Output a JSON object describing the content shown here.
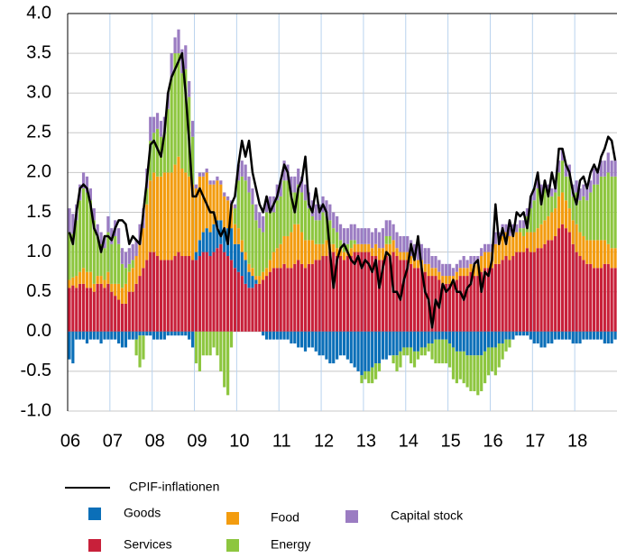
{
  "chart_data": {
    "type": "bar",
    "categories": [
      "06",
      null,
      null,
      null,
      null,
      null,
      null,
      null,
      null,
      null,
      null,
      null,
      "07",
      null,
      null,
      null,
      null,
      null,
      null,
      null,
      null,
      null,
      null,
      null,
      "08",
      null,
      null,
      null,
      null,
      null,
      null,
      null,
      null,
      null,
      null,
      null,
      "09",
      null,
      null,
      null,
      null,
      null,
      null,
      null,
      null,
      null,
      null,
      null,
      "10",
      null,
      null,
      null,
      null,
      null,
      null,
      null,
      null,
      null,
      null,
      null,
      "11",
      null,
      null,
      null,
      null,
      null,
      null,
      null,
      null,
      null,
      null,
      null,
      "12",
      null,
      null,
      null,
      null,
      null,
      null,
      null,
      null,
      null,
      null,
      null,
      "13",
      null,
      null,
      null,
      null,
      null,
      null,
      null,
      null,
      null,
      null,
      null,
      "14",
      null,
      null,
      null,
      null,
      null,
      null,
      null,
      null,
      null,
      null,
      null,
      "15",
      null,
      null,
      null,
      null,
      null,
      null,
      null,
      null,
      null,
      null,
      null,
      "16",
      null,
      null,
      null,
      null,
      null,
      null,
      null,
      null,
      null,
      null,
      null,
      "17",
      null,
      null,
      null,
      null,
      null,
      null,
      null,
      null,
      null,
      null,
      null,
      "18",
      null,
      null,
      null,
      null,
      null,
      null,
      null,
      null,
      null,
      null,
      null
    ],
    "series": [
      {
        "name": "CPIF-inflationen",
        "type": "line",
        "color": "#000000",
        "values": [
          1.25,
          1.1,
          1.5,
          1.8,
          1.85,
          1.8,
          1.6,
          1.3,
          1.2,
          1.0,
          1.2,
          1.2,
          1.15,
          1.3,
          1.4,
          1.4,
          1.35,
          1.1,
          1.2,
          1.15,
          1.1,
          1.5,
          1.9,
          2.35,
          2.4,
          2.3,
          2.2,
          2.5,
          3.0,
          3.2,
          3.3,
          3.4,
          3.5,
          3.0,
          2.4,
          1.7,
          1.7,
          1.8,
          1.7,
          1.6,
          1.5,
          1.5,
          1.3,
          1.2,
          1.3,
          1.1,
          1.6,
          1.7,
          2.1,
          2.4,
          2.2,
          2.4,
          2.0,
          1.8,
          1.6,
          1.5,
          1.7,
          1.5,
          1.6,
          1.7,
          1.9,
          2.1,
          2.0,
          1.7,
          1.5,
          1.8,
          1.9,
          2.2,
          1.6,
          1.5,
          1.8,
          1.5,
          1.6,
          1.5,
          1.0,
          0.55,
          0.9,
          1.05,
          1.1,
          1.0,
          0.9,
          0.85,
          0.95,
          0.8,
          0.9,
          0.85,
          0.75,
          0.9,
          0.55,
          0.8,
          1.0,
          0.95,
          0.5,
          0.5,
          0.4,
          0.65,
          0.8,
          1.1,
          0.9,
          1.2,
          0.8,
          0.5,
          0.4,
          0.05,
          0.4,
          0.3,
          0.6,
          0.5,
          0.55,
          0.65,
          0.5,
          0.5,
          0.4,
          0.55,
          0.6,
          0.85,
          0.9,
          0.5,
          0.75,
          0.7,
          0.9,
          1.6,
          1.1,
          1.3,
          1.1,
          1.4,
          1.2,
          1.5,
          1.45,
          1.5,
          1.3,
          1.7,
          1.8,
          2.0,
          1.6,
          1.9,
          1.7,
          2.0,
          1.8,
          2.3,
          2.3,
          2.1,
          2.0,
          1.75,
          1.6,
          1.9,
          1.95,
          1.8,
          2.0,
          2.1,
          2.0,
          2.2,
          2.3,
          2.45,
          2.4,
          2.15
        ]
      },
      {
        "name": "Goods",
        "color": "#0b6fb8",
        "values": [
          -0.35,
          -0.4,
          -0.1,
          -0.1,
          -0.1,
          -0.15,
          -0.1,
          -0.1,
          -0.1,
          -0.15,
          -0.1,
          -0.1,
          -0.1,
          -0.1,
          -0.15,
          -0.2,
          -0.2,
          -0.1,
          -0.1,
          -0.1,
          -0.05,
          -0.05,
          -0.05,
          -0.05,
          -0.1,
          -0.1,
          -0.1,
          -0.1,
          -0.05,
          -0.05,
          -0.05,
          -0.05,
          -0.05,
          -0.05,
          -0.1,
          -0.2,
          0.1,
          0.2,
          0.25,
          0.3,
          0.3,
          0.35,
          0.35,
          0.3,
          0.3,
          0.35,
          0.4,
          0.3,
          0.35,
          0.3,
          0.3,
          0.2,
          0.15,
          0.05,
          0,
          -0.05,
          -0.1,
          -0.1,
          -0.1,
          -0.1,
          -0.1,
          -0.1,
          -0.1,
          -0.15,
          -0.15,
          -0.2,
          -0.2,
          -0.25,
          -0.2,
          -0.2,
          -0.25,
          -0.3,
          -0.3,
          -0.35,
          -0.4,
          -0.4,
          -0.35,
          -0.3,
          -0.3,
          -0.35,
          -0.4,
          -0.45,
          -0.5,
          -0.55,
          -0.5,
          -0.5,
          -0.45,
          -0.4,
          -0.4,
          -0.35,
          -0.35,
          -0.3,
          -0.3,
          -0.3,
          -0.25,
          -0.2,
          -0.2,
          -0.2,
          -0.25,
          -0.25,
          -0.2,
          -0.2,
          -0.15,
          -0.15,
          -0.1,
          -0.1,
          -0.1,
          -0.1,
          -0.15,
          -0.2,
          -0.25,
          -0.25,
          -0.25,
          -0.3,
          -0.3,
          -0.3,
          -0.3,
          -0.3,
          -0.25,
          -0.2,
          -0.2,
          -0.2,
          -0.15,
          -0.15,
          -0.1,
          -0.1,
          -0.1,
          -0.05,
          -0.05,
          -0.05,
          -0.05,
          -0.1,
          -0.15,
          -0.15,
          -0.2,
          -0.2,
          -0.15,
          -0.15,
          -0.1,
          -0.1,
          -0.1,
          -0.1,
          -0.1,
          -0.15,
          -0.15,
          -0.15,
          -0.1,
          -0.1,
          -0.1,
          -0.1,
          -0.1,
          -0.1,
          -0.15,
          -0.15,
          -0.15,
          -0.1
        ]
      },
      {
        "name": "Food",
        "color": "#f39c0f",
        "values": [
          0.1,
          0.1,
          0.15,
          0.15,
          0.2,
          0.2,
          0.2,
          0.1,
          0.1,
          0.1,
          0.1,
          0.15,
          0.1,
          0.15,
          0.2,
          0.2,
          0.25,
          0.25,
          0.3,
          0.35,
          0.4,
          0.5,
          0.7,
          0.9,
          1.0,
          1.0,
          1.05,
          1.1,
          1.1,
          1.1,
          1.15,
          1.2,
          1.1,
          1.05,
          1.0,
          0.95,
          0.8,
          0.8,
          0.7,
          0.7,
          0.6,
          0.5,
          0.5,
          0.45,
          0.4,
          0.35,
          0.3,
          0.25,
          0.2,
          0.15,
          0.1,
          0.1,
          0.1,
          0.05,
          0.1,
          0.1,
          0.1,
          0.15,
          0.2,
          0.25,
          0.3,
          0.35,
          0.4,
          0.45,
          0.5,
          0.45,
          0.4,
          0.35,
          0.3,
          0.3,
          0.2,
          0.2,
          0.15,
          0.2,
          0.1,
          0.1,
          0.1,
          0.1,
          0.1,
          0.05,
          0.1,
          0.1,
          0.1,
          0.1,
          0.1,
          0.1,
          0.1,
          0.15,
          0.15,
          0.15,
          0.15,
          0.15,
          0.15,
          0.1,
          0.1,
          0.1,
          0.1,
          0.1,
          0.1,
          0.1,
          0.1,
          0.1,
          0.15,
          0.1,
          0.1,
          0.1,
          0.1,
          0.1,
          0.1,
          0.1,
          0.1,
          0.1,
          0.1,
          0.1,
          0.1,
          0.15,
          0.15,
          0.2,
          0.2,
          0.2,
          0.2,
          0.25,
          0.25,
          0.3,
          0.3,
          0.3,
          0.3,
          0.25,
          0.25,
          0.2,
          0.2,
          0.25,
          0.25,
          0.25,
          0.3,
          0.3,
          0.3,
          0.35,
          0.35,
          0.4,
          0.4,
          0.35,
          0.3,
          0.3,
          0.35,
          0.3,
          0.3,
          0.3,
          0.3,
          0.35,
          0.35,
          0.35,
          0.3,
          0.25,
          0.25,
          0.25
        ]
      },
      {
        "name": "Capital stock",
        "color": "#9b7cc2",
        "values": [
          0.3,
          0.25,
          0.2,
          0.2,
          0.2,
          0.2,
          0.15,
          0.15,
          0.15,
          0.15,
          0.15,
          0.2,
          0.2,
          0.2,
          0.2,
          0.2,
          0.2,
          0.2,
          0.2,
          0.2,
          0.25,
          0.25,
          0.25,
          0.3,
          0.2,
          0.2,
          0.2,
          0.2,
          0.2,
          0.3,
          0.2,
          0.3,
          0.3,
          0.3,
          0.2,
          0.2,
          0.05,
          0.05,
          0.05,
          0.05,
          0.05,
          0.05,
          0.05,
          0.05,
          0.05,
          0.05,
          0.05,
          0.05,
          0.2,
          0.2,
          0.2,
          0.2,
          0.2,
          0.2,
          0.2,
          0.2,
          0.2,
          0.2,
          0.2,
          0.2,
          0.2,
          0.25,
          0.2,
          0.2,
          0.2,
          0.2,
          0.2,
          0.2,
          0.2,
          0.2,
          0.2,
          0.2,
          0.2,
          0.2,
          0.2,
          0.2,
          0.2,
          0.2,
          0.2,
          0.2,
          0.2,
          0.2,
          0.2,
          0.2,
          0.2,
          0.2,
          0.2,
          0.2,
          0.2,
          0.25,
          0.2,
          0.2,
          0.2,
          0.2,
          0.2,
          0.2,
          0.2,
          0.2,
          0.2,
          0.2,
          0.2,
          0.2,
          0.2,
          0.15,
          0.15,
          0.15,
          0.15,
          0.15,
          0.15,
          0.1,
          0.1,
          0.1,
          0.15,
          0.1,
          0.1,
          0.1,
          0.1,
          0.1,
          0.1,
          0.1,
          0.1,
          0.15,
          0.15,
          0.15,
          0.1,
          0.1,
          0.1,
          0.1,
          0.1,
          0.1,
          0.1,
          0.15,
          0.15,
          0.15,
          0.15,
          0.1,
          0.1,
          0.1,
          0.1,
          0.15,
          0.15,
          0.15,
          0.15,
          0.15,
          0.15,
          0.15,
          0.15,
          0.15,
          0.15,
          0.2,
          0.2,
          0.2,
          0.2,
          0.25,
          0.2,
          0.2
        ]
      },
      {
        "name": "Services",
        "color": "#c8203a",
        "values": [
          0.55,
          0.58,
          0.55,
          0.6,
          0.6,
          0.55,
          0.55,
          0.5,
          0.6,
          0.6,
          0.55,
          0.6,
          0.5,
          0.45,
          0.4,
          0.35,
          0.35,
          0.5,
          0.5,
          0.6,
          0.7,
          0.8,
          0.9,
          1.0,
          1.0,
          0.95,
          0.9,
          0.9,
          0.9,
          0.9,
          0.95,
          1.0,
          0.95,
          0.95,
          0.95,
          0.9,
          0.9,
          0.95,
          1.0,
          1.0,
          0.95,
          1.0,
          1.05,
          1.1,
          1.0,
          0.95,
          0.9,
          0.8,
          0.75,
          0.7,
          0.6,
          0.55,
          0.55,
          0.6,
          0.6,
          0.65,
          0.7,
          0.75,
          0.8,
          0.8,
          0.8,
          0.85,
          0.8,
          0.8,
          0.85,
          0.9,
          0.85,
          0.8,
          0.85,
          0.85,
          0.9,
          0.9,
          0.95,
          0.95,
          1.0,
          1.0,
          0.95,
          0.95,
          0.9,
          0.95,
          0.95,
          1.0,
          1.0,
          1.0,
          1.0,
          1.0,
          0.95,
          0.95,
          0.9,
          0.9,
          0.95,
          0.95,
          1.0,
          0.95,
          0.9,
          0.9,
          0.9,
          0.85,
          0.8,
          0.8,
          0.8,
          0.75,
          0.7,
          0.7,
          0.7,
          0.65,
          0.6,
          0.6,
          0.6,
          0.6,
          0.65,
          0.7,
          0.7,
          0.7,
          0.75,
          0.7,
          0.7,
          0.75,
          0.8,
          0.8,
          0.8,
          0.85,
          0.85,
          0.9,
          0.95,
          0.9,
          0.95,
          1.0,
          1.0,
          1.0,
          1.05,
          1.0,
          1.0,
          1.05,
          1.05,
          1.1,
          1.15,
          1.15,
          1.2,
          1.3,
          1.35,
          1.3,
          1.25,
          1.1,
          1.0,
          0.95,
          0.9,
          0.85,
          0.85,
          0.8,
          0.8,
          0.8,
          0.85,
          0.85,
          0.8,
          0.8
        ]
      },
      {
        "name": "Energy",
        "color": "#8dc63f",
        "values": [
          0.6,
          0.55,
          0.7,
          0.9,
          1.0,
          1.0,
          0.9,
          0.8,
          0.5,
          0.4,
          0.4,
          0.5,
          0.5,
          0.6,
          0.5,
          0.3,
          0.2,
          0.1,
          0.1,
          -0.2,
          -0.4,
          -0.3,
          0.2,
          0.5,
          0.5,
          0.6,
          0.5,
          0.5,
          0.8,
          1.2,
          1.4,
          1.3,
          1.2,
          1.3,
          1.0,
          0.6,
          -0.4,
          -0.5,
          -0.3,
          -0.3,
          -0.3,
          -0.2,
          -0.3,
          -0.5,
          -0.7,
          -0.8,
          -0.2,
          0.2,
          0.6,
          0.8,
          0.9,
          0.9,
          0.8,
          0.7,
          0.6,
          0.5,
          0.7,
          0.6,
          0.5,
          0.6,
          0.6,
          0.7,
          0.7,
          0.5,
          0.4,
          0.5,
          0.5,
          0.5,
          0.4,
          0.3,
          0.3,
          0.3,
          0.4,
          0.3,
          0.3,
          0.2,
          0.2,
          0.1,
          0.1,
          0.1,
          0.1,
          0.05,
          0,
          -0.1,
          -0.1,
          -0.15,
          -0.2,
          -0.2,
          -0.1,
          0,
          0.1,
          0.1,
          -0.1,
          -0.2,
          -0.2,
          -0.1,
          -0.1,
          -0.2,
          -0.2,
          -0.1,
          -0.1,
          -0.1,
          -0.1,
          -0.2,
          -0.3,
          -0.3,
          -0.3,
          -0.3,
          -0.3,
          -0.4,
          -0.4,
          -0.35,
          -0.4,
          -0.4,
          -0.45,
          -0.45,
          -0.5,
          -0.45,
          -0.4,
          -0.35,
          -0.3,
          -0.35,
          -0.3,
          -0.2,
          -0.15,
          -0.1,
          0,
          0,
          0.05,
          0.1,
          0.2,
          0.3,
          0.4,
          0.5,
          0.35,
          0.4,
          0.3,
          0.2,
          0.2,
          0.3,
          0.4,
          0.3,
          0.4,
          0.3,
          0.4,
          0.4,
          0.5,
          0.5,
          0.6,
          0.7,
          0.7,
          0.8,
          0.8,
          0.9,
          0.9,
          0.9
        ]
      }
    ],
    "ylim": [
      -1,
      4
    ],
    "yticks": [
      {
        "value": -1,
        "label": "-1.0"
      },
      {
        "value": -0.5,
        "label": "-0.5"
      },
      {
        "value": 0,
        "label": "0.0"
      },
      {
        "value": 0.5,
        "label": "0.5"
      },
      {
        "value": 1,
        "label": "1.0"
      },
      {
        "value": 1.5,
        "label": "1.5"
      },
      {
        "value": 2,
        "label": "2.0"
      },
      {
        "value": 2.5,
        "label": "2.5"
      },
      {
        "value": 3,
        "label": "3.0"
      },
      {
        "value": 3.5,
        "label": "3.5"
      },
      {
        "value": 4,
        "label": "4.0"
      }
    ],
    "grid": true,
    "legend": "bottom"
  }
}
